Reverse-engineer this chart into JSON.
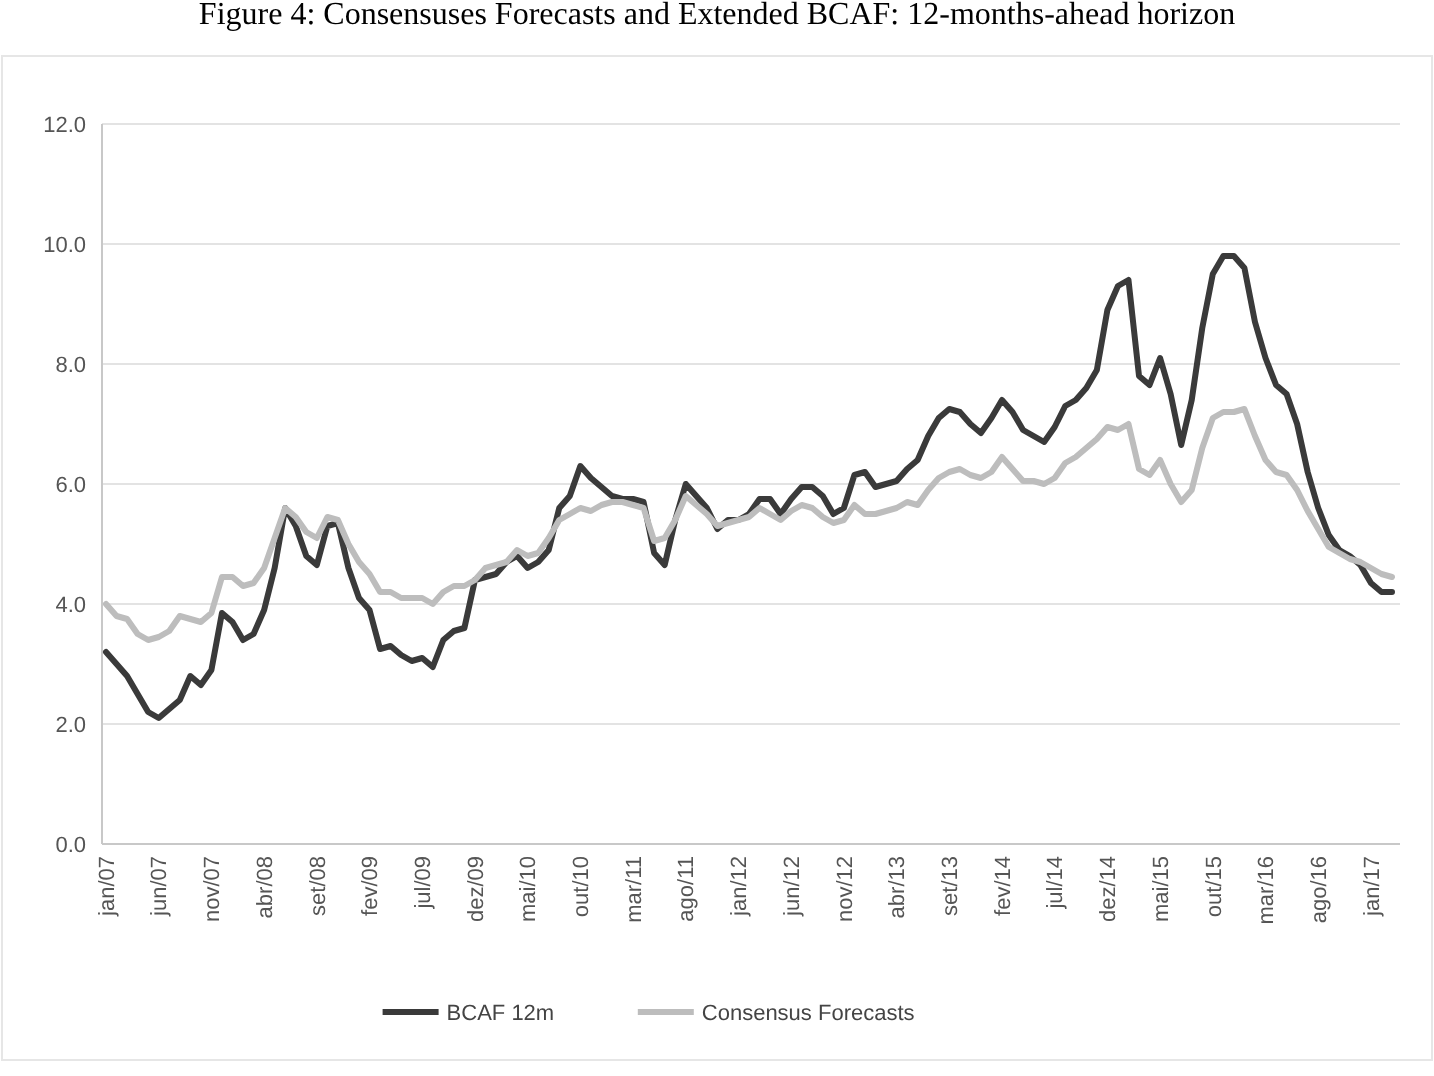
{
  "chart_data": {
    "type": "line",
    "title": "Figure 4: Consensuses Forecasts and Extended BCAF: 12-months-ahead horizon",
    "categories": [
      "jan/07",
      null,
      null,
      null,
      null,
      "jun/07",
      null,
      null,
      null,
      null,
      "nov/07",
      null,
      null,
      null,
      null,
      "abr/08",
      null,
      null,
      null,
      null,
      "set/08",
      null,
      null,
      null,
      null,
      "fev/09",
      null,
      null,
      null,
      null,
      "jul/09",
      null,
      null,
      null,
      null,
      "dez/09",
      null,
      null,
      null,
      null,
      "mai/10",
      null,
      null,
      null,
      null,
      "out/10",
      null,
      null,
      null,
      null,
      "mar/11",
      null,
      null,
      null,
      null,
      "ago/11",
      null,
      null,
      null,
      null,
      "jan/12",
      null,
      null,
      null,
      null,
      "jun/12",
      null,
      null,
      null,
      null,
      "nov/12",
      null,
      null,
      null,
      null,
      "abr/13",
      null,
      null,
      null,
      null,
      "set/13",
      null,
      null,
      null,
      null,
      "fev/14",
      null,
      null,
      null,
      null,
      "jul/14",
      null,
      null,
      null,
      null,
      "dez/14",
      null,
      null,
      null,
      null,
      "mai/15",
      null,
      null,
      null,
      null,
      "out/15",
      null,
      null,
      null,
      null,
      "mar/16",
      null,
      null,
      null,
      null,
      "ago/16",
      null,
      null,
      null,
      null,
      "jan/17",
      null,
      null
    ],
    "series": [
      {
        "name": "BCAF 12m",
        "color": "#3a3a3a",
        "values": [
          3.2,
          3.0,
          2.8,
          2.5,
          2.2,
          2.1,
          2.25,
          2.4,
          2.8,
          2.65,
          2.9,
          3.85,
          3.7,
          3.4,
          3.5,
          3.9,
          4.6,
          5.6,
          5.3,
          4.8,
          4.65,
          5.3,
          5.35,
          4.6,
          4.1,
          3.9,
          3.25,
          3.3,
          3.15,
          3.05,
          3.1,
          2.95,
          3.4,
          3.55,
          3.6,
          4.4,
          4.45,
          4.5,
          4.7,
          4.8,
          4.6,
          4.7,
          4.9,
          5.6,
          5.8,
          6.3,
          6.1,
          5.95,
          5.8,
          5.75,
          5.75,
          5.7,
          4.85,
          4.65,
          5.4,
          6.0,
          5.8,
          5.6,
          5.25,
          5.4,
          5.4,
          5.5,
          5.75,
          5.75,
          5.5,
          5.75,
          5.95,
          5.95,
          5.8,
          5.5,
          5.6,
          6.15,
          6.2,
          5.95,
          6.0,
          6.05,
          6.25,
          6.4,
          6.8,
          7.1,
          7.25,
          7.2,
          7.0,
          6.85,
          7.1,
          7.4,
          7.2,
          6.9,
          6.8,
          6.7,
          6.95,
          7.3,
          7.4,
          7.6,
          7.9,
          8.9,
          9.3,
          9.4,
          7.8,
          7.65,
          8.1,
          7.5,
          6.65,
          7.4,
          8.6,
          9.5,
          9.8,
          9.8,
          9.6,
          8.7,
          8.1,
          7.65,
          7.5,
          7.0,
          6.2,
          5.6,
          5.15,
          4.9,
          4.8,
          4.65,
          4.35,
          4.2,
          4.2
        ]
      },
      {
        "name": "Consensus Forecasts",
        "color": "#bdbdbd",
        "values": [
          4.0,
          3.8,
          3.75,
          3.5,
          3.4,
          3.45,
          3.55,
          3.8,
          3.75,
          3.7,
          3.85,
          4.45,
          4.45,
          4.3,
          4.35,
          4.6,
          5.1,
          5.6,
          5.45,
          5.2,
          5.1,
          5.45,
          5.4,
          5.0,
          4.7,
          4.5,
          4.2,
          4.2,
          4.1,
          4.1,
          4.1,
          4.0,
          4.2,
          4.3,
          4.3,
          4.4,
          4.6,
          4.65,
          4.7,
          4.9,
          4.8,
          4.85,
          5.1,
          5.4,
          5.5,
          5.6,
          5.55,
          5.65,
          5.7,
          5.7,
          5.65,
          5.6,
          5.05,
          5.1,
          5.4,
          5.8,
          5.65,
          5.5,
          5.3,
          5.35,
          5.4,
          5.45,
          5.6,
          5.5,
          5.4,
          5.55,
          5.65,
          5.6,
          5.45,
          5.35,
          5.4,
          5.65,
          5.5,
          5.5,
          5.55,
          5.6,
          5.7,
          5.65,
          5.9,
          6.1,
          6.2,
          6.25,
          6.15,
          6.1,
          6.2,
          6.45,
          6.25,
          6.05,
          6.05,
          6.0,
          6.1,
          6.35,
          6.45,
          6.6,
          6.75,
          6.95,
          6.9,
          7.0,
          6.25,
          6.15,
          6.4,
          6.0,
          5.7,
          5.9,
          6.6,
          7.1,
          7.2,
          7.2,
          7.25,
          6.8,
          6.4,
          6.2,
          6.15,
          5.9,
          5.55,
          5.25,
          4.95,
          4.85,
          4.75,
          4.7,
          4.6,
          4.5,
          4.45
        ]
      }
    ],
    "ylim": [
      0,
      12
    ],
    "yticks": [
      {
        "value": 0,
        "label": "0.0"
      },
      {
        "value": 2,
        "label": "2.0"
      },
      {
        "value": 4,
        "label": "4.0"
      },
      {
        "value": 6,
        "label": "6.0"
      },
      {
        "value": 8,
        "label": "8.0"
      },
      {
        "value": 10,
        "label": "10.0"
      },
      {
        "value": 12,
        "label": "12.0"
      }
    ],
    "grid": "y",
    "legend": "bottom",
    "marker": "none",
    "line_style": "solid"
  }
}
